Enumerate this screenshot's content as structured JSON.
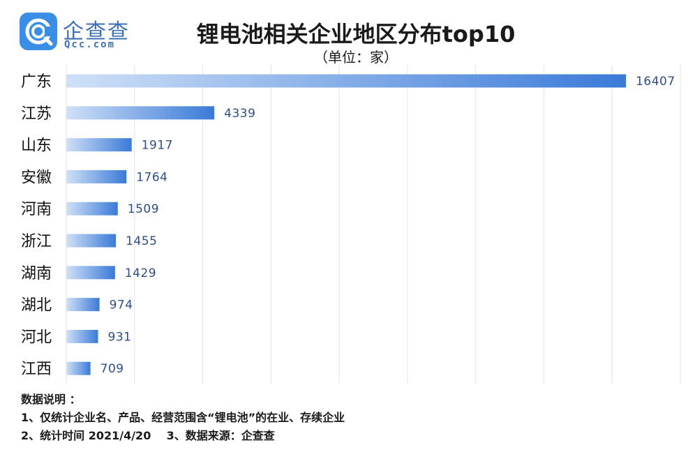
{
  "logo": {
    "name": "企查查",
    "domain": "Qcc.com",
    "icon": "qcc-logo-icon"
  },
  "header": {
    "title": "锂电池相关企业地区分布top10",
    "subtitle": "（单位：家）"
  },
  "colors": {
    "bar_light": "#cfe0f7",
    "bar_dark": "#3a7ad8",
    "grid": "#e2e2e2",
    "value": "#2d4e85"
  },
  "chart_data": {
    "type": "bar",
    "orientation": "horizontal",
    "title": "锂电池相关企业地区分布top10",
    "subtitle": "（单位：家）",
    "categories": [
      "广东",
      "江苏",
      "山东",
      "安徽",
      "河南",
      "浙江",
      "湖南",
      "湖北",
      "河北",
      "江西"
    ],
    "values": [
      16407,
      4339,
      1917,
      1764,
      1509,
      1455,
      1429,
      974,
      931,
      709
    ],
    "xlim": [
      0,
      18000
    ],
    "grid": true,
    "legend": "none"
  },
  "notes": {
    "heading": "数据说明 ：",
    "line1": "1、仅统计企业名、产品、经营范围含“锂电池”的在业、存续企业",
    "line2": "2、统计时间 2021/4/20    3、数据来源：企查查"
  }
}
